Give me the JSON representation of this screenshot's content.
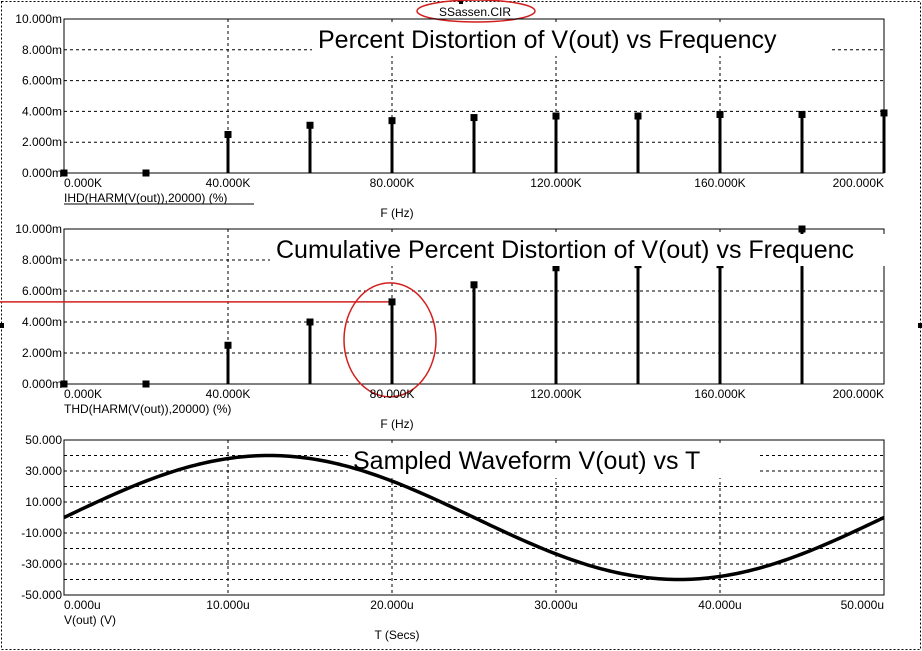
{
  "file_label": "SSassen.CIR",
  "colors": {
    "annotation": "#d21f1f",
    "trace": "#000000",
    "grid": "#000000"
  },
  "chart_data": [
    {
      "type": "bar",
      "title": "Percent Distortion of V(out) vs Frequency",
      "trace_label": "IHD(HARM(V(out)),20000) (%)",
      "xlabel": "F (Hz)",
      "xlim": [
        0,
        200000
      ],
      "ylim": [
        0,
        10
      ],
      "x_ticks": [
        "0.000K",
        "40.000K",
        "80.000K",
        "120.000K",
        "160.000K",
        "200.000K"
      ],
      "y_ticks": [
        "0.000m",
        "2.000m",
        "4.000m",
        "6.000m",
        "8.000m",
        "10.000m"
      ],
      "x": [
        0,
        20000,
        40000,
        60000,
        80000,
        100000,
        120000,
        140000,
        160000,
        180000,
        200000
      ],
      "values": [
        0.0,
        0.0,
        2.5,
        3.1,
        3.4,
        3.6,
        3.7,
        3.7,
        3.8,
        3.8,
        3.9
      ]
    },
    {
      "type": "bar",
      "title": "Cumulative Percent Distortion of V(out) vs Frequenc",
      "trace_label": "THD(HARM(V(out)),20000) (%)",
      "xlabel": "F (Hz)",
      "xlim": [
        0,
        200000
      ],
      "ylim": [
        0,
        10
      ],
      "x_ticks": [
        "0.000K",
        "40.000K",
        "80.000K",
        "120.000K",
        "160.000K",
        "200.000K"
      ],
      "y_ticks": [
        "0.000m",
        "2.000m",
        "4.000m",
        "6.000m",
        "8.000m",
        "10.000m"
      ],
      "x": [
        0,
        20000,
        40000,
        60000,
        80000,
        100000,
        120000,
        140000,
        160000,
        180000
      ],
      "values": [
        0.0,
        0.0,
        2.5,
        4.0,
        5.3,
        6.4,
        7.5,
        7.7,
        7.7,
        10.0
      ],
      "reference_value": 5.3,
      "highlight_x": 80000
    },
    {
      "type": "line",
      "title": "Sampled Waveform  V(out) vs T",
      "trace_label": "V(out) (V)",
      "xlabel": "T (Secs)",
      "xlim": [
        0,
        50
      ],
      "ylim": [
        -50,
        50
      ],
      "x_ticks": [
        "0.000u",
        "10.000u",
        "20.000u",
        "30.000u",
        "40.000u",
        "50.000u"
      ],
      "y_ticks": [
        "-50.000",
        "-30.000",
        "-10.000",
        "10.000",
        "30.000",
        "50.000"
      ],
      "x": [
        0,
        2.5,
        5,
        7.5,
        10,
        12.5,
        15,
        17.5,
        20,
        22.5,
        25,
        27.5,
        30,
        32.5,
        35,
        37.5,
        40,
        42.5,
        45,
        47.5,
        50
      ],
      "values": [
        0,
        12.4,
        23.5,
        32.4,
        38.0,
        40.0,
        38.0,
        32.4,
        23.5,
        12.4,
        0,
        -12.4,
        -23.5,
        -32.4,
        -38.0,
        -40.0,
        -38.0,
        -32.4,
        -23.5,
        -12.4,
        0
      ]
    }
  ]
}
